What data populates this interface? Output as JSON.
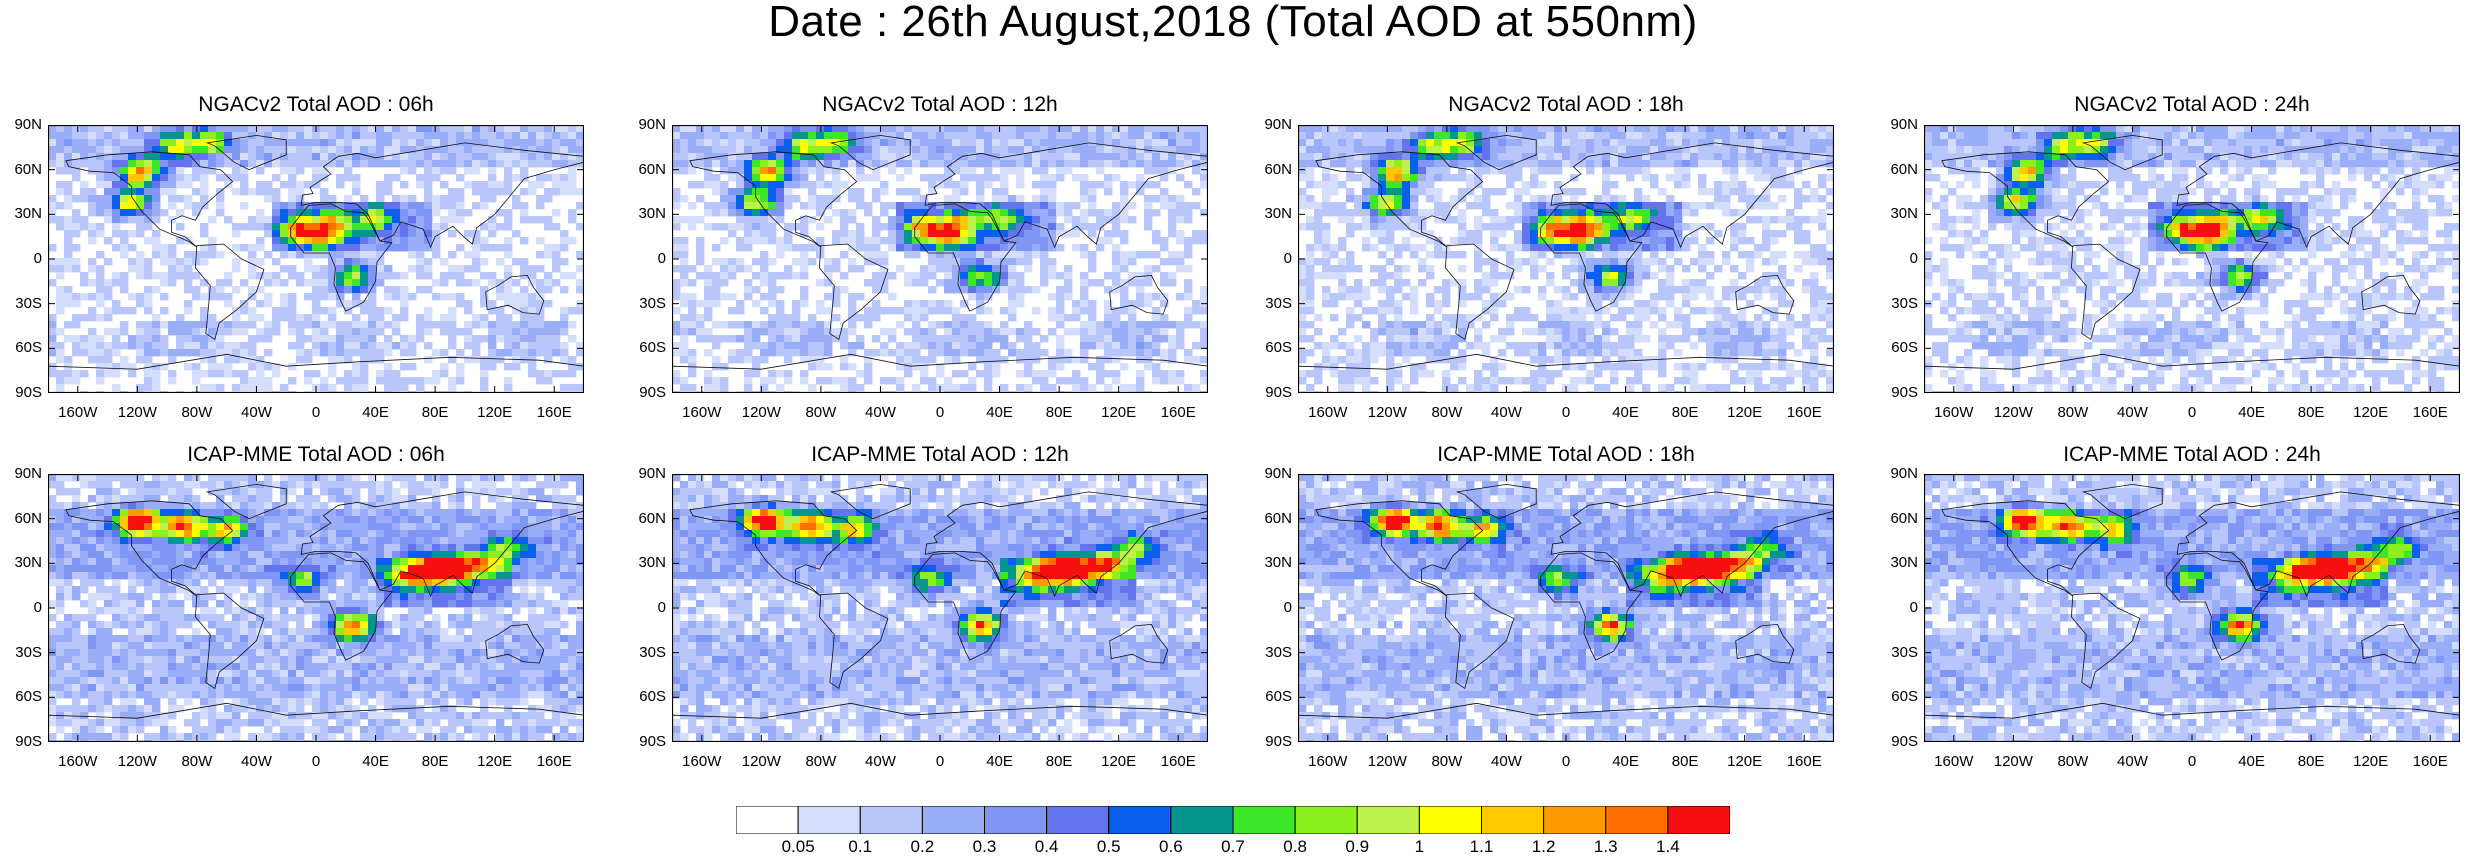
{
  "title": "Date : 26th August,2018 (Total AOD at 550nm)",
  "panels": [
    {
      "title": "NGACv2 Total AOD : 06h",
      "model": "NGACv2"
    },
    {
      "title": "NGACv2 Total AOD : 12h",
      "model": "NGACv2"
    },
    {
      "title": "NGACv2 Total AOD : 18h",
      "model": "NGACv2"
    },
    {
      "title": "NGACv2 Total AOD : 24h",
      "model": "NGACv2"
    },
    {
      "title": "ICAP-MME Total AOD : 06h",
      "model": "ICAP-MME"
    },
    {
      "title": "ICAP-MME Total AOD : 12h",
      "model": "ICAP-MME"
    },
    {
      "title": "ICAP-MME Total AOD : 18h",
      "model": "ICAP-MME"
    },
    {
      "title": "ICAP-MME Total AOD : 24h",
      "model": "ICAP-MME"
    }
  ],
  "lat_ticks": [
    "90N",
    "60N",
    "30N",
    "0",
    "30S",
    "60S",
    "90S"
  ],
  "lon_ticks": [
    "160W",
    "120W",
    "80W",
    "40W",
    "0",
    "40E",
    "80E",
    "120E",
    "160E"
  ],
  "colorbar": {
    "labels": [
      "0.05",
      "0.1",
      "0.2",
      "0.3",
      "0.4",
      "0.5",
      "0.6",
      "0.7",
      "0.8",
      "0.9",
      "1",
      "1.1",
      "1.2",
      "1.3",
      "1.4"
    ],
    "colors": [
      "#ffffff",
      "#d4ddfc",
      "#b9c6fb",
      "#99adf8",
      "#8096f4",
      "#6473ee",
      "#0a5ef0",
      "#07958f",
      "#3ee62a",
      "#8cf01e",
      "#bdf14b",
      "#ffff00",
      "#ffc800",
      "#ff9a00",
      "#ff6f00",
      "#f70f0f"
    ]
  }
}
